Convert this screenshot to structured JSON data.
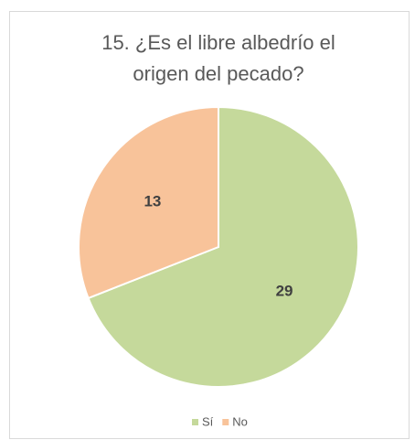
{
  "chart_data": {
    "type": "pie",
    "title": [
      "15. ¿Es el libre albedrío el",
      "origen del pecado?"
    ],
    "categories": [
      "Sí",
      "No"
    ],
    "values": [
      29,
      13
    ],
    "colors": [
      "#c5d99b",
      "#f8c39a"
    ],
    "legend": "bottom"
  }
}
